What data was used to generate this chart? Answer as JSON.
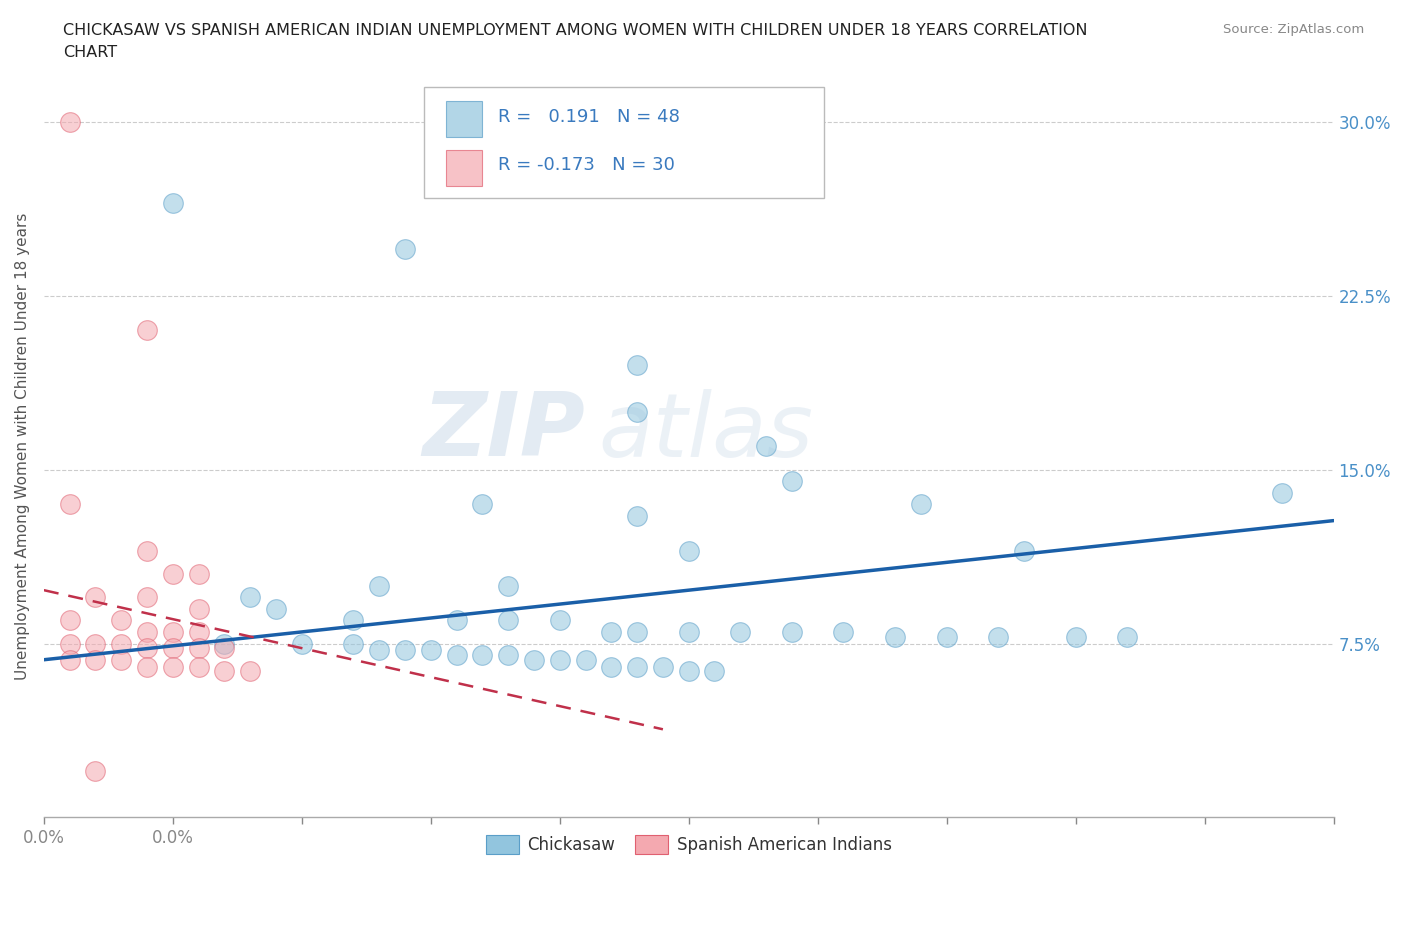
{
  "title_line1": "CHICKASAW VS SPANISH AMERICAN INDIAN UNEMPLOYMENT AMONG WOMEN WITH CHILDREN UNDER 18 YEARS CORRELATION",
  "title_line2": "CHART",
  "source": "Source: ZipAtlas.com",
  "ylabel": "Unemployment Among Women with Children Under 18 years",
  "xlim": [
    0.0,
    0.25
  ],
  "ylim": [
    0.0,
    0.32
  ],
  "xticks": [
    0.0,
    0.025,
    0.05,
    0.075,
    0.1,
    0.125,
    0.15,
    0.175,
    0.2,
    0.225,
    0.25
  ],
  "xticklabels_show": {
    "0.0": "0.0%"
  },
  "ytick_positions": [
    0.075,
    0.15,
    0.225,
    0.3
  ],
  "ytick_labels": [
    "7.5%",
    "15.0%",
    "22.5%",
    "30.0%"
  ],
  "legend1_R": "0.191",
  "legend1_N": "48",
  "legend2_R": "-0.173",
  "legend2_N": "30",
  "blue_color": "#92c5de",
  "blue_edge": "#5a9ec8",
  "pink_color": "#f4a9b0",
  "pink_edge": "#e06070",
  "blue_trend_color": "#1a5fa8",
  "pink_trend_color": "#c0304a",
  "blue_scatter": [
    [
      0.025,
      0.265
    ],
    [
      0.07,
      0.245
    ],
    [
      0.115,
      0.195
    ],
    [
      0.115,
      0.175
    ],
    [
      0.14,
      0.16
    ],
    [
      0.145,
      0.145
    ],
    [
      0.115,
      0.13
    ],
    [
      0.125,
      0.115
    ],
    [
      0.085,
      0.135
    ],
    [
      0.17,
      0.135
    ],
    [
      0.19,
      0.115
    ],
    [
      0.04,
      0.095
    ],
    [
      0.065,
      0.1
    ],
    [
      0.09,
      0.1
    ],
    [
      0.045,
      0.09
    ],
    [
      0.06,
      0.085
    ],
    [
      0.08,
      0.085
    ],
    [
      0.09,
      0.085
    ],
    [
      0.1,
      0.085
    ],
    [
      0.11,
      0.08
    ],
    [
      0.115,
      0.08
    ],
    [
      0.125,
      0.08
    ],
    [
      0.135,
      0.08
    ],
    [
      0.145,
      0.08
    ],
    [
      0.155,
      0.08
    ],
    [
      0.165,
      0.078
    ],
    [
      0.175,
      0.078
    ],
    [
      0.185,
      0.078
    ],
    [
      0.2,
      0.078
    ],
    [
      0.21,
      0.078
    ],
    [
      0.035,
      0.075
    ],
    [
      0.05,
      0.075
    ],
    [
      0.06,
      0.075
    ],
    [
      0.065,
      0.072
    ],
    [
      0.07,
      0.072
    ],
    [
      0.075,
      0.072
    ],
    [
      0.08,
      0.07
    ],
    [
      0.085,
      0.07
    ],
    [
      0.09,
      0.07
    ],
    [
      0.095,
      0.068
    ],
    [
      0.1,
      0.068
    ],
    [
      0.105,
      0.068
    ],
    [
      0.11,
      0.065
    ],
    [
      0.115,
      0.065
    ],
    [
      0.12,
      0.065
    ],
    [
      0.125,
      0.063
    ],
    [
      0.13,
      0.063
    ],
    [
      0.24,
      0.14
    ]
  ],
  "pink_scatter": [
    [
      0.005,
      0.3
    ],
    [
      0.02,
      0.21
    ],
    [
      0.005,
      0.135
    ],
    [
      0.02,
      0.115
    ],
    [
      0.025,
      0.105
    ],
    [
      0.03,
      0.105
    ],
    [
      0.01,
      0.095
    ],
    [
      0.02,
      0.095
    ],
    [
      0.03,
      0.09
    ],
    [
      0.005,
      0.085
    ],
    [
      0.015,
      0.085
    ],
    [
      0.02,
      0.08
    ],
    [
      0.025,
      0.08
    ],
    [
      0.03,
      0.08
    ],
    [
      0.005,
      0.075
    ],
    [
      0.01,
      0.075
    ],
    [
      0.015,
      0.075
    ],
    [
      0.02,
      0.073
    ],
    [
      0.025,
      0.073
    ],
    [
      0.03,
      0.073
    ],
    [
      0.035,
      0.073
    ],
    [
      0.005,
      0.068
    ],
    [
      0.01,
      0.068
    ],
    [
      0.015,
      0.068
    ],
    [
      0.02,
      0.065
    ],
    [
      0.025,
      0.065
    ],
    [
      0.03,
      0.065
    ],
    [
      0.035,
      0.063
    ],
    [
      0.04,
      0.063
    ],
    [
      0.01,
      0.02
    ]
  ],
  "blue_trend_x": [
    0.0,
    0.25
  ],
  "blue_trend_y": [
    0.068,
    0.128
  ],
  "pink_trend_x": [
    0.0,
    0.12
  ],
  "pink_trend_y": [
    0.098,
    0.038
  ],
  "watermark_line1": "ZIP",
  "watermark_line2": "atlas",
  "grid_color": "#cccccc",
  "background_color": "#ffffff"
}
